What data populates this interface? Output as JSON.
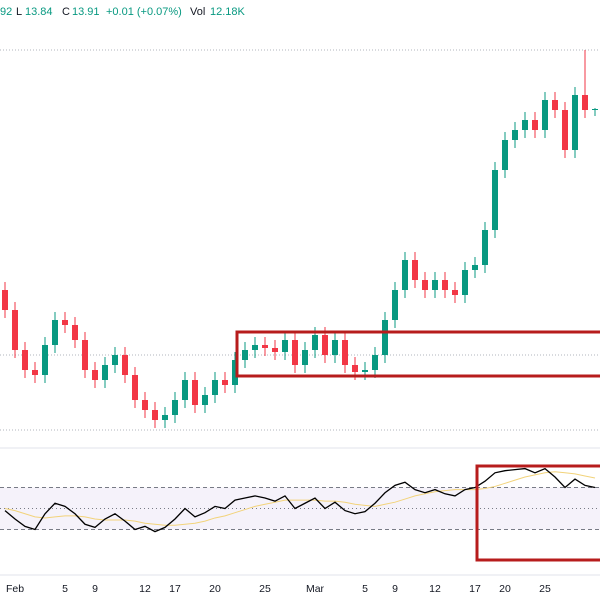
{
  "header": {
    "high_partial": "92",
    "low_label": "L",
    "low": "13.84",
    "close_label": "C",
    "close": "13.91",
    "change": "+0.01 (+0.07%)",
    "volume_label": "Vol",
    "volume": "12.18K"
  },
  "chart_data": {
    "type": "candlestick",
    "categories": [
      null,
      "Feb",
      null,
      null,
      null,
      null,
      "5",
      null,
      null,
      "9",
      null,
      null,
      null,
      null,
      "12",
      null,
      null,
      "17",
      null,
      null,
      null,
      "20",
      null,
      null,
      null,
      null,
      "25",
      null,
      null,
      null,
      null,
      "Mar",
      null,
      null,
      null,
      null,
      "5",
      null,
      null,
      "9",
      null,
      null,
      null,
      "12",
      null,
      null,
      null,
      "17",
      null,
      null,
      "20",
      null,
      null,
      null,
      "25",
      null,
      null,
      null,
      null,
      null
    ],
    "open": [
      12.1,
      11.9,
      11.5,
      11.3,
      11.25,
      11.55,
      11.8,
      11.75,
      11.6,
      11.3,
      11.2,
      11.35,
      11.45,
      11.25,
      11.0,
      10.9,
      10.8,
      10.85,
      11.0,
      11.2,
      10.95,
      11.05,
      11.2,
      11.15,
      11.4,
      11.5,
      11.55,
      11.52,
      11.48,
      11.6,
      11.35,
      11.5,
      11.65,
      11.45,
      11.6,
      11.35,
      11.28,
      11.3,
      11.45,
      11.8,
      12.1,
      12.4,
      12.2,
      12.1,
      12.2,
      12.1,
      12.05,
      12.3,
      12.35,
      12.7,
      13.3,
      13.6,
      13.7,
      13.8,
      13.7,
      14.0,
      13.9,
      13.5,
      14.05,
      13.9
    ],
    "high": [
      12.18,
      11.98,
      11.58,
      11.38,
      11.63,
      11.88,
      11.88,
      11.83,
      11.68,
      11.38,
      11.43,
      11.53,
      11.53,
      11.33,
      11.08,
      10.98,
      10.93,
      11.08,
      11.28,
      11.28,
      11.13,
      11.28,
      11.28,
      11.48,
      11.58,
      11.63,
      11.63,
      11.6,
      11.68,
      11.68,
      11.58,
      11.73,
      11.73,
      11.68,
      11.68,
      11.43,
      11.38,
      11.53,
      11.88,
      12.18,
      12.48,
      12.48,
      12.28,
      12.28,
      12.28,
      12.18,
      12.38,
      12.43,
      12.78,
      13.38,
      13.68,
      13.78,
      13.88,
      13.88,
      14.08,
      14.08,
      13.98,
      14.13,
      14.5,
      13.92
    ],
    "low": [
      11.82,
      11.42,
      11.22,
      11.17,
      11.17,
      11.47,
      11.67,
      11.52,
      11.22,
      11.12,
      11.12,
      11.27,
      11.17,
      10.92,
      10.82,
      10.72,
      10.72,
      10.77,
      10.92,
      10.87,
      10.87,
      10.97,
      11.07,
      11.07,
      11.32,
      11.42,
      11.44,
      11.4,
      11.4,
      11.27,
      11.27,
      11.42,
      11.37,
      11.37,
      11.27,
      11.2,
      11.2,
      11.22,
      11.37,
      11.72,
      12.02,
      12.12,
      12.02,
      12.02,
      12.02,
      11.97,
      11.97,
      12.22,
      12.27,
      12.62,
      13.22,
      13.52,
      13.62,
      13.62,
      13.62,
      13.82,
      13.42,
      13.42,
      13.82,
      13.84
    ],
    "close": [
      11.9,
      11.5,
      11.3,
      11.25,
      11.55,
      11.8,
      11.75,
      11.6,
      11.3,
      11.2,
      11.35,
      11.45,
      11.25,
      11.0,
      10.9,
      10.8,
      10.85,
      11.0,
      11.2,
      10.95,
      11.05,
      11.2,
      11.15,
      11.4,
      11.5,
      11.55,
      11.52,
      11.48,
      11.6,
      11.35,
      11.5,
      11.65,
      11.45,
      11.6,
      11.35,
      11.28,
      11.3,
      11.45,
      11.8,
      12.1,
      12.4,
      12.2,
      12.1,
      12.2,
      12.1,
      12.05,
      12.3,
      12.35,
      12.7,
      13.3,
      13.6,
      13.7,
      13.8,
      13.7,
      14.0,
      13.9,
      13.5,
      14.05,
      13.9,
      13.91
    ],
    "up_color": "#089981",
    "down_color": "#f23645",
    "ylim": [
      10.6,
      14.6
    ],
    "rsi": {
      "values": [
        48,
        40,
        33,
        30,
        45,
        55,
        52,
        45,
        35,
        32,
        40,
        45,
        38,
        30,
        33,
        28,
        32,
        40,
        50,
        42,
        46,
        52,
        50,
        58,
        60,
        62,
        60,
        57,
        62,
        50,
        55,
        60,
        50,
        56,
        48,
        45,
        47,
        55,
        65,
        72,
        75,
        68,
        65,
        68,
        64,
        62,
        68,
        70,
        76,
        84,
        86,
        87,
        88,
        84,
        88,
        80,
        70,
        78,
        72,
        70
      ],
      "ma": [
        50,
        48,
        45,
        42,
        41,
        42,
        43,
        43,
        42,
        40,
        39,
        39,
        39,
        38,
        36,
        35,
        34,
        34,
        35,
        36,
        38,
        41,
        43,
        46,
        49,
        52,
        54,
        56,
        58,
        58,
        58,
        58,
        57,
        57,
        56,
        54,
        53,
        52,
        54,
        56,
        59,
        62,
        64,
        66,
        67,
        68,
        68,
        68,
        69,
        71,
        74,
        77,
        80,
        82,
        84,
        85,
        84,
        83,
        81,
        79
      ],
      "color": "#000000",
      "ma_color": "#f2d37a",
      "band_color": "#7e57c2",
      "ylim": [
        0,
        100
      ],
      "levels": [
        70,
        50,
        30
      ]
    }
  }
}
